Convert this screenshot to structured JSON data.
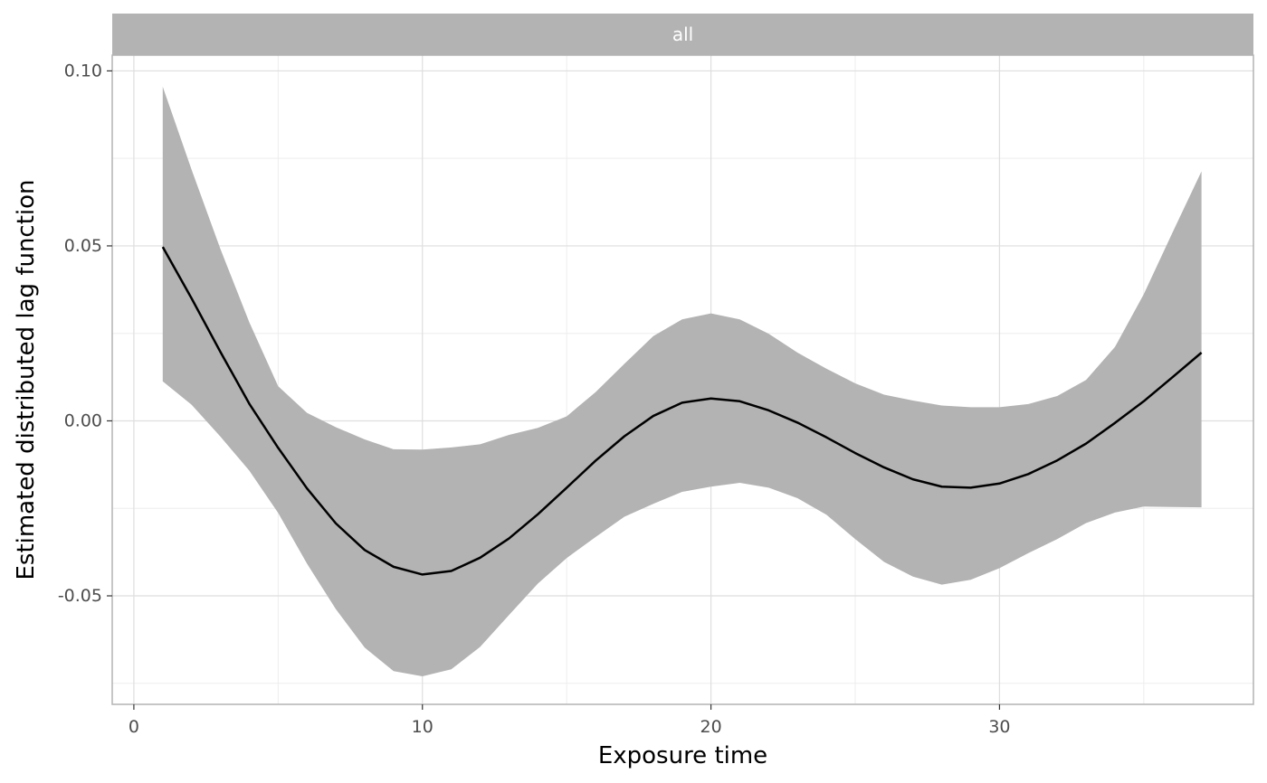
{
  "chart_data": {
    "type": "line",
    "facet_label": "all",
    "xlabel": "Exposure time",
    "ylabel": "Estimated distributed lag function",
    "xlim": [
      -0.75,
      38.8
    ],
    "ylim": [
      -0.081,
      0.1045
    ],
    "x_ticks": [
      0,
      10,
      20,
      30
    ],
    "x_tick_labels": [
      "0",
      "10",
      "20",
      "30"
    ],
    "x_minor_ticks": [
      5,
      15,
      25,
      35
    ],
    "y_ticks": [
      -0.05,
      0.0,
      0.05,
      0.1
    ],
    "y_tick_labels": [
      "-0.05",
      "0.00",
      "0.05",
      "0.10"
    ],
    "y_minor_ticks": [
      -0.075,
      -0.025,
      0.025,
      0.075
    ],
    "grid": true,
    "colors": {
      "line": "#000000",
      "ribbon": "#b3b3b3",
      "strip": "#b3b3b3",
      "grid_major": "#dedede",
      "grid_minor": "#ededed",
      "panel_border": "#b3b3b3"
    },
    "series": [
      {
        "x": [
          1,
          2,
          3,
          4,
          5,
          6,
          7,
          8,
          9,
          10,
          11,
          12,
          13,
          14,
          15,
          16,
          17,
          18,
          19,
          20,
          21,
          22,
          23,
          24,
          25,
          26,
          27,
          28,
          29,
          30,
          31,
          32,
          33,
          34,
          35,
          36,
          37
        ],
        "y": [
          0.0497,
          0.035,
          0.0197,
          0.0049,
          -0.0077,
          -0.0193,
          -0.0293,
          -0.0369,
          -0.0417,
          -0.0439,
          -0.0429,
          -0.0391,
          -0.0336,
          -0.0267,
          -0.0191,
          -0.0114,
          -0.0044,
          0.0014,
          0.0052,
          0.0064,
          0.0056,
          0.003,
          -0.0005,
          -0.0047,
          -0.0092,
          -0.0133,
          -0.0167,
          -0.0188,
          -0.0191,
          -0.0179,
          -0.0152,
          -0.0113,
          -0.0065,
          -0.0006,
          0.0056,
          0.0125,
          0.0195
        ],
        "lower": [
          0.0113,
          0.0046,
          -0.0045,
          -0.0142,
          -0.0263,
          -0.0408,
          -0.0538,
          -0.0648,
          -0.0715,
          -0.073,
          -0.071,
          -0.0646,
          -0.0555,
          -0.0465,
          -0.0392,
          -0.0332,
          -0.0274,
          -0.0237,
          -0.0203,
          -0.0188,
          -0.0177,
          -0.0191,
          -0.0221,
          -0.0268,
          -0.0338,
          -0.0403,
          -0.0445,
          -0.0468,
          -0.0454,
          -0.0421,
          -0.0378,
          -0.0338,
          -0.0292,
          -0.0262,
          -0.0245,
          -0.0246,
          -0.0247
        ],
        "upper": [
          0.0955,
          0.0718,
          0.0491,
          0.0282,
          0.0099,
          0.0023,
          -0.0018,
          -0.0053,
          -0.0081,
          -0.0082,
          -0.0076,
          -0.0067,
          -0.004,
          -0.002,
          0.0013,
          0.0082,
          0.0163,
          0.0242,
          0.029,
          0.0307,
          0.029,
          0.0249,
          0.0195,
          0.0149,
          0.0107,
          0.0075,
          0.0058,
          0.0044,
          0.0039,
          0.0039,
          0.0048,
          0.0071,
          0.0117,
          0.0211,
          0.0362,
          0.0539,
          0.0713
        ]
      }
    ]
  }
}
